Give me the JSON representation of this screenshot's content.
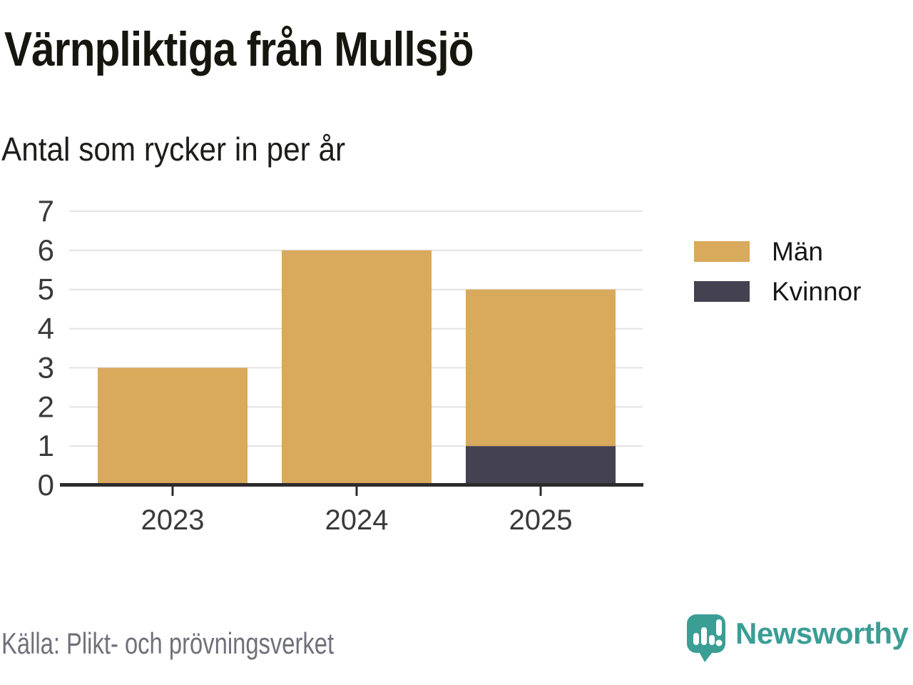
{
  "page": {
    "title": "Värnpliktiga från Mullsjö",
    "subtitle": "Antal som rycker in per år",
    "source": "Källa: Plikt- och prövningsverket",
    "brand": "Newsworthy"
  },
  "colors": {
    "men": "#D9A95C",
    "women": "#444250",
    "brand_teal": "#3B9E95",
    "grid": "#E3E3E3",
    "axis": "#2C2C2C",
    "tick_label": "#3A3A3A"
  },
  "chart_data": {
    "type": "bar",
    "stacked": true,
    "title": "Värnpliktiga från Mullsjö",
    "subtitle": "Antal som rycker in per år",
    "categories": [
      "2023",
      "2024",
      "2025"
    ],
    "series": [
      {
        "name": "Män",
        "color": "#D9A95C",
        "values": [
          3,
          6,
          4
        ]
      },
      {
        "name": "Kvinnor",
        "color": "#444250",
        "values": [
          0,
          0,
          1
        ]
      }
    ],
    "ylim": [
      0,
      7
    ],
    "yticks": [
      0,
      1,
      2,
      3,
      4,
      5,
      6,
      7
    ],
    "xlabel": "",
    "ylabel": "",
    "grid": true,
    "legend_position": "right",
    "source": "Källa: Plikt- och prövningsverket"
  }
}
